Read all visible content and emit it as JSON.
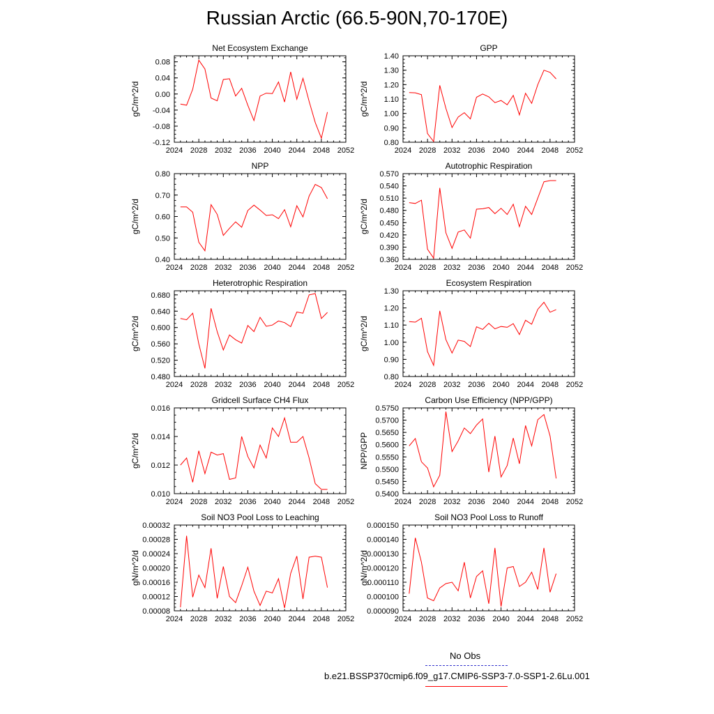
{
  "title": "Russian Arctic (66.5-90N,70-170E)",
  "colors": {
    "series": "#ff0000",
    "obs": "#3333cc",
    "axis": "#000000"
  },
  "legend": {
    "obs_label": "No Obs",
    "model_label": "b.e21.BSSP370cmip6.f09_g17.CMIP6-SSP3-7.0-SSP1-2.6Lu.001"
  },
  "chart_data": [
    {
      "type": "line",
      "title": "Net Ecosystem Exchange",
      "ylabel": "gC/m^2/d",
      "xlim": [
        2024,
        2052
      ],
      "xticks": [
        "2024",
        "2028",
        "2032",
        "2036",
        "2040",
        "2044",
        "2048",
        "2052"
      ],
      "ylim": [
        -0.12,
        0.095
      ],
      "yticks": [
        "-0.12",
        "-0.08",
        "-0.04",
        "0.00",
        "0.04",
        "0.08"
      ],
      "x": [
        2025,
        2026,
        2027,
        2028,
        2029,
        2030,
        2031,
        2032,
        2033,
        2034,
        2035,
        2036,
        2037,
        2038,
        2039,
        2040,
        2041,
        2042,
        2043,
        2044,
        2045,
        2046,
        2047,
        2048,
        2049
      ],
      "y": [
        -0.025,
        -0.028,
        0.012,
        0.084,
        0.062,
        -0.01,
        -0.017,
        0.036,
        0.038,
        -0.005,
        0.014,
        -0.028,
        -0.066,
        -0.005,
        0.002,
        0.001,
        0.03,
        -0.02,
        0.055,
        -0.013,
        0.039,
        -0.018,
        -0.071,
        -0.11,
        -0.045
      ]
    },
    {
      "type": "line",
      "title": "GPP",
      "ylabel": "gC/m^2/d",
      "xlim": [
        2024,
        2052
      ],
      "xticks": [
        "2024",
        "2028",
        "2032",
        "2036",
        "2040",
        "2044",
        "2048",
        "2052"
      ],
      "ylim": [
        0.8,
        1.4
      ],
      "yticks": [
        "0.80",
        "0.90",
        "1.00",
        "1.10",
        "1.20",
        "1.30",
        "1.40"
      ],
      "x": [
        2025,
        2026,
        2027,
        2028,
        2029,
        2030,
        2031,
        2032,
        2033,
        2034,
        2035,
        2036,
        2037,
        2038,
        2039,
        2040,
        2041,
        2042,
        2043,
        2044,
        2045,
        2046,
        2047,
        2048,
        2049
      ],
      "y": [
        1.145,
        1.143,
        1.13,
        0.86,
        0.805,
        1.195,
        1.035,
        0.902,
        0.975,
        1.005,
        0.962,
        1.112,
        1.135,
        1.115,
        1.075,
        1.09,
        1.06,
        1.125,
        0.99,
        1.14,
        1.07,
        1.2,
        1.3,
        1.285,
        1.24
      ]
    },
    {
      "type": "line",
      "title": "NPP",
      "ylabel": "gC/m^2/d",
      "xlim": [
        2024,
        2052
      ],
      "xticks": [
        "2024",
        "2028",
        "2032",
        "2036",
        "2040",
        "2044",
        "2048",
        "2052"
      ],
      "ylim": [
        0.4,
        0.8
      ],
      "yticks": [
        "0.40",
        "0.50",
        "0.60",
        "0.70",
        "0.80"
      ],
      "x": [
        2025,
        2026,
        2027,
        2028,
        2029,
        2030,
        2031,
        2032,
        2033,
        2034,
        2035,
        2036,
        2037,
        2038,
        2039,
        2040,
        2041,
        2042,
        2043,
        2044,
        2045,
        2046,
        2047,
        2048,
        2049
      ],
      "y": [
        0.645,
        0.645,
        0.62,
        0.48,
        0.44,
        0.655,
        0.61,
        0.512,
        0.545,
        0.575,
        0.55,
        0.628,
        0.653,
        0.63,
        0.605,
        0.608,
        0.59,
        0.632,
        0.552,
        0.65,
        0.598,
        0.695,
        0.75,
        0.735,
        0.683
      ]
    },
    {
      "type": "line",
      "title": "Autotrophic Respiration",
      "ylabel": "gC/m^2/d",
      "xlim": [
        2024,
        2052
      ],
      "xticks": [
        "2024",
        "2028",
        "2032",
        "2036",
        "2040",
        "2044",
        "2048",
        "2052"
      ],
      "ylim": [
        0.36,
        0.57
      ],
      "yticks": [
        "0.360",
        "0.390",
        "0.420",
        "0.450",
        "0.480",
        "0.510",
        "0.540",
        "0.570"
      ],
      "x": [
        2025,
        2026,
        2027,
        2028,
        2029,
        2030,
        2031,
        2032,
        2033,
        2034,
        2035,
        2036,
        2037,
        2038,
        2039,
        2040,
        2041,
        2042,
        2043,
        2044,
        2045,
        2046,
        2047,
        2048,
        2049
      ],
      "y": [
        0.499,
        0.497,
        0.505,
        0.385,
        0.363,
        0.535,
        0.425,
        0.387,
        0.427,
        0.432,
        0.412,
        0.483,
        0.484,
        0.487,
        0.472,
        0.485,
        0.47,
        0.495,
        0.44,
        0.49,
        0.47,
        0.51,
        0.55,
        0.553,
        0.553
      ]
    },
    {
      "type": "line",
      "title": "Heterotrophic Respiration",
      "ylabel": "gC/m^2/d",
      "xlim": [
        2024,
        2052
      ],
      "xticks": [
        "2024",
        "2028",
        "2032",
        "2036",
        "2040",
        "2044",
        "2048",
        "2052"
      ],
      "ylim": [
        0.48,
        0.69
      ],
      "yticks": [
        "0.480",
        "0.520",
        "0.560",
        "0.600",
        "0.640",
        "0.680"
      ],
      "x": [
        2025,
        2026,
        2027,
        2028,
        2029,
        2030,
        2031,
        2032,
        2033,
        2034,
        2035,
        2036,
        2037,
        2038,
        2039,
        2040,
        2041,
        2042,
        2043,
        2044,
        2045,
        2046,
        2047,
        2048,
        2049
      ],
      "y": [
        0.622,
        0.619,
        0.635,
        0.56,
        0.5,
        0.647,
        0.59,
        0.545,
        0.582,
        0.57,
        0.562,
        0.605,
        0.59,
        0.625,
        0.603,
        0.606,
        0.616,
        0.612,
        0.602,
        0.638,
        0.635,
        0.68,
        0.683,
        0.622,
        0.637
      ]
    },
    {
      "type": "line",
      "title": "Ecosystem Respiration",
      "ylabel": "gC/m^2/d",
      "xlim": [
        2024,
        2052
      ],
      "xticks": [
        "2024",
        "2028",
        "2032",
        "2036",
        "2040",
        "2044",
        "2048",
        "2052"
      ],
      "ylim": [
        0.8,
        1.3
      ],
      "yticks": [
        "0.80",
        "0.90",
        "1.00",
        "1.10",
        "1.20",
        "1.30"
      ],
      "x": [
        2025,
        2026,
        2027,
        2028,
        2029,
        2030,
        2031,
        2032,
        2033,
        2034,
        2035,
        2036,
        2037,
        2038,
        2039,
        2040,
        2041,
        2042,
        2043,
        2044,
        2045,
        2046,
        2047,
        2048,
        2049
      ],
      "y": [
        1.12,
        1.117,
        1.14,
        0.945,
        0.865,
        1.183,
        1.015,
        0.937,
        1.012,
        1.005,
        0.975,
        1.09,
        1.075,
        1.11,
        1.078,
        1.092,
        1.087,
        1.108,
        1.045,
        1.128,
        1.105,
        1.192,
        1.233,
        1.175,
        1.19
      ]
    },
    {
      "type": "line",
      "title": "Gridcell Surface CH4 Flux",
      "ylabel": "gC/m^2/d",
      "xlim": [
        2024,
        2052
      ],
      "xticks": [
        "2024",
        "2028",
        "2032",
        "2036",
        "2040",
        "2044",
        "2048",
        "2052"
      ],
      "ylim": [
        0.01,
        0.016
      ],
      "yticks": [
        "0.010",
        "0.012",
        "0.014",
        "0.016"
      ],
      "x": [
        2025,
        2026,
        2027,
        2028,
        2029,
        2030,
        2031,
        2032,
        2033,
        2034,
        2035,
        2036,
        2037,
        2038,
        2039,
        2040,
        2041,
        2042,
        2043,
        2044,
        2045,
        2046,
        2047,
        2048,
        2049
      ],
      "y": [
        0.012,
        0.0125,
        0.0108,
        0.013,
        0.0114,
        0.0129,
        0.0127,
        0.0128,
        0.011,
        0.0111,
        0.014,
        0.0126,
        0.0118,
        0.0134,
        0.0125,
        0.0146,
        0.014,
        0.0153,
        0.0136,
        0.0136,
        0.014,
        0.0125,
        0.0107,
        0.0103,
        0.0103
      ]
    },
    {
      "type": "line",
      "title": "Carbon Use Efficiency (NPP/GPP)",
      "ylabel": "NPP/GPP",
      "xlim": [
        2024,
        2052
      ],
      "xticks": [
        "2024",
        "2028",
        "2032",
        "2036",
        "2040",
        "2044",
        "2048",
        "2052"
      ],
      "ylim": [
        0.54,
        0.575
      ],
      "yticks": [
        "0.5400",
        "0.5450",
        "0.5500",
        "0.5550",
        "0.5600",
        "0.5650",
        "0.5700",
        "0.5750"
      ],
      "x": [
        2025,
        2026,
        2027,
        2028,
        2029,
        2030,
        2031,
        2032,
        2033,
        2034,
        2035,
        2036,
        2037,
        2038,
        2039,
        2040,
        2041,
        2042,
        2043,
        2044,
        2045,
        2046,
        2047,
        2048,
        2049
      ],
      "y": [
        0.5595,
        0.5625,
        0.553,
        0.5505,
        0.5428,
        0.5475,
        0.5735,
        0.5572,
        0.5615,
        0.5668,
        0.5645,
        0.568,
        0.5705,
        0.5488,
        0.5635,
        0.5468,
        0.5515,
        0.5627,
        0.5522,
        0.5678,
        0.5595,
        0.5702,
        0.5723,
        0.5635,
        0.5462
      ]
    },
    {
      "type": "line",
      "title": "Soil NO3 Pool Loss to Leaching",
      "ylabel": "gN/m^2/d",
      "xlim": [
        2024,
        2052
      ],
      "xticks": [
        "2024",
        "2028",
        "2032",
        "2036",
        "2040",
        "2044",
        "2048",
        "2052"
      ],
      "ylim": [
        8e-05,
        0.00032
      ],
      "yticks": [
        "0.00008",
        "0.00012",
        "0.00016",
        "0.00020",
        "0.00024",
        "0.00028",
        "0.00032"
      ],
      "x": [
        2025,
        2026,
        2027,
        2028,
        2029,
        2030,
        2031,
        2032,
        2033,
        2034,
        2035,
        2036,
        2037,
        2038,
        2039,
        2040,
        2041,
        2042,
        2043,
        2044,
        2045,
        2046,
        2047,
        2048,
        2049
      ],
      "y": [
        9e-05,
        0.00029,
        0.000118,
        0.00018,
        0.000145,
        0.000255,
        0.000115,
        0.000204,
        0.00012,
        0.000103,
        0.00015,
        0.000202,
        0.000135,
        9.5e-05,
        0.000135,
        0.00013,
        0.00017,
        8.8e-05,
        0.000185,
        0.000233,
        0.000113,
        0.00023,
        0.000233,
        0.00023,
        0.000145
      ]
    },
    {
      "type": "line",
      "title": "Soil NO3 Pool Loss to Runoff",
      "ylabel": "gN/m^2/d",
      "xlim": [
        2024,
        2052
      ],
      "xticks": [
        "2024",
        "2028",
        "2032",
        "2036",
        "2040",
        "2044",
        "2048",
        "2052"
      ],
      "ylim": [
        9e-05,
        0.00015
      ],
      "yticks": [
        "0.000090",
        "0.000100",
        "0.000110",
        "0.000120",
        "0.000130",
        "0.000140",
        "0.000150"
      ],
      "x": [
        2025,
        2026,
        2027,
        2028,
        2029,
        2030,
        2031,
        2032,
        2033,
        2034,
        2035,
        2036,
        2037,
        2038,
        2039,
        2040,
        2041,
        2042,
        2043,
        2044,
        2045,
        2046,
        2047,
        2048,
        2049
      ],
      "y": [
        0.000102,
        0.000141,
        0.000124,
        9.9e-05,
        9.7e-05,
        0.000106,
        0.000109,
        0.00011,
        0.000104,
        0.000124,
        9.9e-05,
        0.000114,
        0.000118,
        9.5e-05,
        0.000134,
        9.3e-05,
        0.00012,
        0.000121,
        0.000107,
        0.00011,
        0.000117,
        0.000105,
        0.000134,
        0.000103,
        0.000116
      ]
    }
  ]
}
